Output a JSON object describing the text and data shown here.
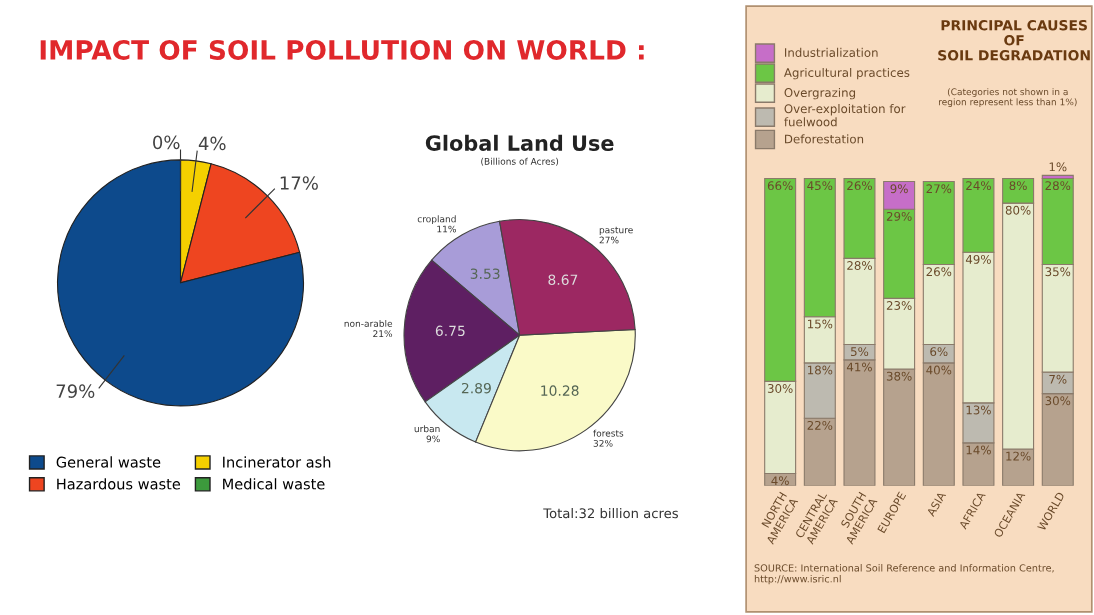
{
  "chart_data": [
    {
      "type": "pie",
      "title": "IMPACT OF SOIL POLLUTION ON WORLD :",
      "categories": [
        "Medical waste",
        "Incinerator ash",
        "Hazardous waste",
        "General waste"
      ],
      "values": [
        0,
        4,
        17,
        79
      ],
      "colors": [
        "#3c9a3c",
        "#f5d000",
        "#ee4520",
        "#0d4a8c"
      ],
      "value_labels": [
        "0%",
        "4%",
        "17%",
        "79%"
      ],
      "legend": "bottom"
    },
    {
      "type": "pie",
      "title": "Global Land Use",
      "subtitle": "(Billions of Acres)",
      "categories": [
        "cropland\n11%",
        "non-arable\n21%",
        "urban\n9%",
        "forests\n32%",
        "pasture\n27%"
      ],
      "values": [
        3.53,
        6.75,
        2.89,
        10.28,
        8.67
      ],
      "colors": [
        "#a89cd8",
        "#5e1f62",
        "#c8e8f0",
        "#fafac8",
        "#9c2862"
      ],
      "data_labels": true,
      "annotations": [
        "Total:32 billion acres"
      ]
    },
    {
      "type": "bar",
      "stacked": true,
      "title": "PRINCIPAL CAUSES\nOF\nSOIL DEGRADATION",
      "subtitle": "(Categories not shown in a\nregion represent less than 1%)",
      "categories": [
        "NORTH\nAMERICA",
        "CENTRAL\nAMERICA",
        "SOUTH\nAMERICA",
        "EUROPE",
        "ASIA",
        "AFRICA",
        "OCEANIA",
        "WORLD"
      ],
      "legend": "top left",
      "annotations": [
        "SOURCE: International Soil Reference and Information Centre,\nhttp://www.isric.nl"
      ],
      "series": [
        {
          "name": "Deforestation",
          "color": "#b6a28e",
          "values": [
            4,
            22,
            41,
            38,
            40,
            14,
            12,
            30
          ],
          "value_labels": [
            "4%",
            "22%",
            "41%",
            "38%",
            "40%",
            "14%",
            "12%",
            "30%"
          ]
        },
        {
          "name": "Over-exploitation for\nfuelwood",
          "color": "#bdbab0",
          "values": [
            null,
            18,
            5,
            null,
            6,
            13,
            null,
            7
          ],
          "value_labels": [
            null,
            "18%",
            "5%",
            null,
            "6%",
            "13%",
            null,
            "7%"
          ]
        },
        {
          "name": "Overgrazing",
          "color": "#e6ecce",
          "values": [
            30,
            15,
            28,
            23,
            26,
            49,
            80,
            35
          ],
          "value_labels": [
            "30%",
            "15%",
            "28%",
            "23%",
            "26%",
            "49%",
            "80%",
            "35%"
          ]
        },
        {
          "name": "Agricultural practices",
          "color": "#6cc645",
          "values": [
            66,
            45,
            26,
            29,
            27,
            24,
            8,
            28
          ],
          "value_labels": [
            "66%",
            "45%",
            "26%",
            "29%",
            "27%",
            "24%",
            "8%",
            "28%"
          ]
        },
        {
          "name": "Industrialization",
          "color": "#c66ec8",
          "values": [
            null,
            null,
            null,
            9,
            null,
            null,
            null,
            1
          ],
          "value_labels": [
            null,
            null,
            null,
            "9%",
            null,
            null,
            null,
            "1%"
          ]
        }
      ]
    }
  ]
}
